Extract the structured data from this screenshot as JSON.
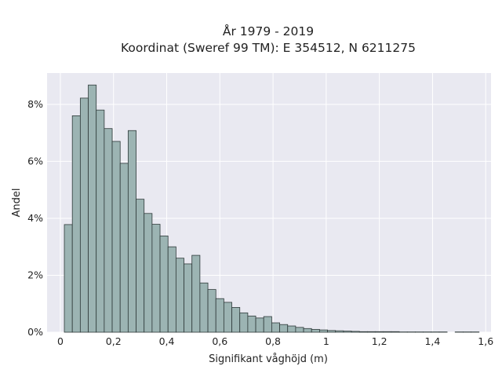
{
  "chart_data": {
    "type": "bar",
    "title": [
      "År 1979 - 2019",
      "Koordinat (Sweref 99 TM): E 354512, N 6211275"
    ],
    "xlabel": "Signifikant våghöjd (m)",
    "ylabel": "Andel",
    "xlim": [
      -0.05,
      1.62
    ],
    "ylim": [
      0,
      9.1
    ],
    "bin_width": 0.03,
    "grid": true,
    "colors": {
      "background": "#e9e9f1",
      "grid": "#ffffff",
      "bar_fill": "#9cb4b3",
      "bar_edge": "#2f3a3a"
    },
    "x_ticks": [
      {
        "value": 0,
        "label": "0"
      },
      {
        "value": 0.2,
        "label": "0,2"
      },
      {
        "value": 0.4,
        "label": "0,4"
      },
      {
        "value": 0.6,
        "label": "0,6"
      },
      {
        "value": 0.8,
        "label": "0,8"
      },
      {
        "value": 1.0,
        "label": "1"
      },
      {
        "value": 1.2,
        "label": "1,2"
      },
      {
        "value": 1.4,
        "label": "1,4"
      },
      {
        "value": 1.6,
        "label": "1,6"
      }
    ],
    "y_ticks": [
      {
        "value": 0,
        "label": "0%"
      },
      {
        "value": 2,
        "label": "2%"
      },
      {
        "value": 4,
        "label": "4%"
      },
      {
        "value": 6,
        "label": "6%"
      },
      {
        "value": 8,
        "label": "8%"
      }
    ],
    "bins_start": [
      0.015,
      0.045,
      0.075,
      0.105,
      0.135,
      0.165,
      0.195,
      0.225,
      0.255,
      0.285,
      0.315,
      0.345,
      0.375,
      0.405,
      0.435,
      0.465,
      0.495,
      0.525,
      0.555,
      0.585,
      0.615,
      0.645,
      0.675,
      0.705,
      0.735,
      0.765,
      0.795,
      0.825,
      0.855,
      0.885,
      0.915,
      0.945,
      0.975,
      1.005,
      1.035,
      1.065,
      1.095,
      1.125,
      1.155,
      1.185,
      1.215,
      1.245,
      1.275,
      1.305,
      1.335,
      1.365,
      1.395,
      1.425,
      1.485,
      1.515,
      1.545
    ],
    "values": [
      3.78,
      7.6,
      8.22,
      8.68,
      7.8,
      7.15,
      6.7,
      5.93,
      7.08,
      4.67,
      4.17,
      3.79,
      3.38,
      3.0,
      2.6,
      2.4,
      2.7,
      1.73,
      1.5,
      1.18,
      1.05,
      0.87,
      0.68,
      0.57,
      0.5,
      0.55,
      0.33,
      0.27,
      0.22,
      0.17,
      0.13,
      0.1,
      0.08,
      0.06,
      0.05,
      0.04,
      0.03,
      0.02,
      0.02,
      0.02,
      0.02,
      0.02,
      0.01,
      0.01,
      0.01,
      0.01,
      0.01,
      0.01,
      0.01,
      0.01,
      0.01
    ]
  }
}
